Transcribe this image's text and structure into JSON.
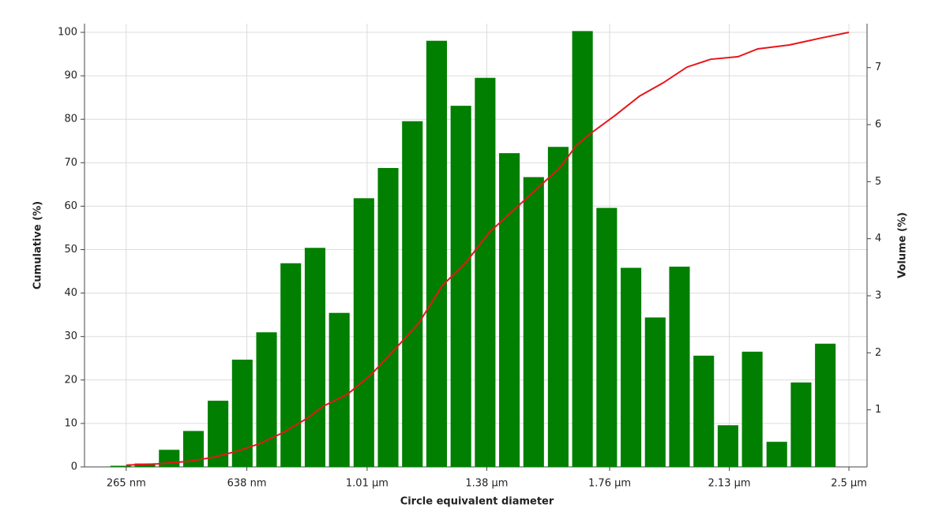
{
  "chart_data": {
    "type": "bar-line",
    "xlabel": "Circle equivalent diameter",
    "ylabel": "Cumulative (%)",
    "y2label": "Volume (%)",
    "xlim": [
      0.136,
      2.556
    ],
    "xticks": [
      {
        "value": 0.265,
        "label": "265 nm"
      },
      {
        "value": 0.638,
        "label": "638 nm"
      },
      {
        "value": 1.01,
        "label": "1.01 µm"
      },
      {
        "value": 1.38,
        "label": "1.38 µm"
      },
      {
        "value": 1.76,
        "label": "1.76 µm"
      },
      {
        "value": 2.13,
        "label": "2.13 µm"
      },
      {
        "value": 2.5,
        "label": "2.5 µm"
      }
    ],
    "ylim": [
      0,
      102
    ],
    "yticks": [
      0,
      10,
      20,
      30,
      40,
      50,
      60,
      70,
      80,
      90,
      100
    ],
    "y2lim": [
      0,
      7.77
    ],
    "y2ticks": [
      1,
      2,
      3,
      4,
      5,
      6,
      7
    ],
    "grid": true,
    "bars": {
      "axis": "y2",
      "color": "#007f00",
      "x": [
        0.248,
        0.323,
        0.398,
        0.473,
        0.549,
        0.624,
        0.699,
        0.774,
        0.849,
        0.924,
        1.0,
        1.075,
        1.15,
        1.225,
        1.3,
        1.375,
        1.45,
        1.525,
        1.601,
        1.676,
        1.751,
        1.826,
        1.901,
        1.976,
        2.051,
        2.126,
        2.201,
        2.277,
        2.352,
        2.427
      ],
      "values": [
        0.02,
        0.06,
        0.3,
        0.63,
        1.16,
        1.88,
        2.36,
        3.57,
        3.84,
        2.7,
        4.71,
        5.24,
        6.06,
        7.47,
        6.33,
        6.82,
        5.5,
        5.08,
        5.61,
        7.64,
        4.54,
        3.49,
        2.62,
        3.51,
        1.95,
        0.73,
        2.02,
        0.44,
        1.48,
        2.16
      ]
    },
    "line": {
      "color": "#e8161b",
      "x": [
        0.265,
        0.363,
        0.46,
        0.534,
        0.607,
        0.68,
        0.753,
        0.827,
        0.875,
        0.949,
        1.022,
        1.095,
        1.169,
        1.242,
        1.315,
        1.388,
        1.462,
        1.535,
        1.608,
        1.657,
        1.706,
        1.779,
        1.852,
        1.926,
        1.999,
        2.072,
        2.157,
        2.218,
        2.316,
        2.414,
        2.5
      ],
      "values": [
        0.4,
        0.7,
        1.3,
        2.2,
        3.6,
        5.4,
        8,
        11.3,
        14,
        16.7,
        21.2,
        27,
        33,
        41.7,
        47,
        54,
        59,
        64,
        69,
        74,
        77,
        81,
        85.3,
        88.4,
        92,
        93.8,
        94.4,
        96.2,
        97.1,
        98.7,
        100
      ]
    }
  }
}
